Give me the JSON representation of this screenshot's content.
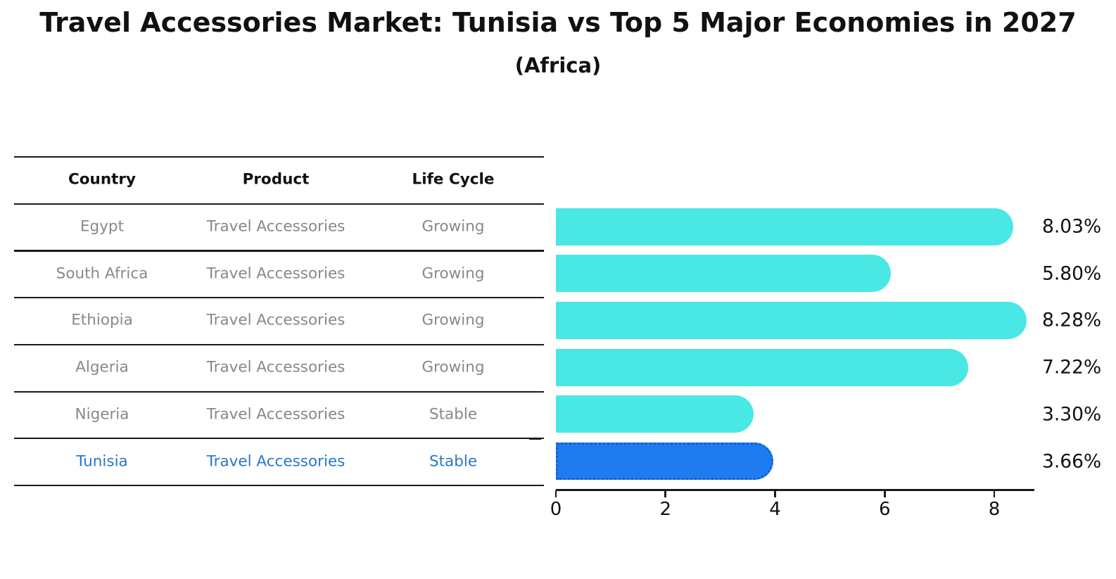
{
  "title": "Travel Accessories Market: Tunisia vs Top 5 Major Economies in 2027",
  "subtitle": "(Africa)",
  "table": {
    "headers": [
      "Country",
      "Product",
      "Life Cycle"
    ],
    "rows": [
      {
        "country": "Egypt",
        "product": "Travel Accessories",
        "life_cycle": "Growing",
        "highlighted": false
      },
      {
        "country": "South Africa",
        "product": "Travel Accessories",
        "life_cycle": "Growing",
        "highlighted": false
      },
      {
        "country": "Ethiopia",
        "product": "Travel Accessories",
        "life_cycle": "Growing",
        "highlighted": false
      },
      {
        "country": "Algeria",
        "product": "Travel Accessories",
        "life_cycle": "Growing",
        "highlighted": false
      },
      {
        "country": "Nigeria",
        "product": "Travel Accessories",
        "life_cycle": "Stable",
        "highlighted": false
      },
      {
        "country": "Tunisia",
        "product": "Travel Accessories",
        "life_cycle": "Stable",
        "highlighted": true
      }
    ]
  },
  "chart_data": {
    "type": "bar",
    "orientation": "horizontal",
    "title": "Travel Accessories Market: Tunisia vs Top 5 Major Economies in 2027 (Africa)",
    "categories": [
      "Egypt",
      "South Africa",
      "Ethiopia",
      "Algeria",
      "Nigeria",
      "Tunisia"
    ],
    "values": [
      8.03,
      5.8,
      8.28,
      7.22,
      3.3,
      3.66
    ],
    "value_labels": [
      "8.03%",
      "5.80%",
      "8.28%",
      "7.22%",
      "3.30%",
      "3.66%"
    ],
    "x_axis_ticks": [
      0,
      2,
      4,
      6,
      8
    ],
    "xlim": [
      0,
      8.7
    ],
    "grid": false,
    "legend": "none",
    "highlight_index": 5,
    "bar_style": "rounded-right-cap, highlighted bar has dotted edge"
  },
  "colors": {
    "bar": "#4AE8E4",
    "highlight_bar": "#1E7CF0",
    "highlight_border": "#155FD0",
    "highlight_text": "#2878C8",
    "row_text": "#888888",
    "text": "#111111",
    "axis": "#1a1a1a",
    "background": "#ffffff"
  }
}
